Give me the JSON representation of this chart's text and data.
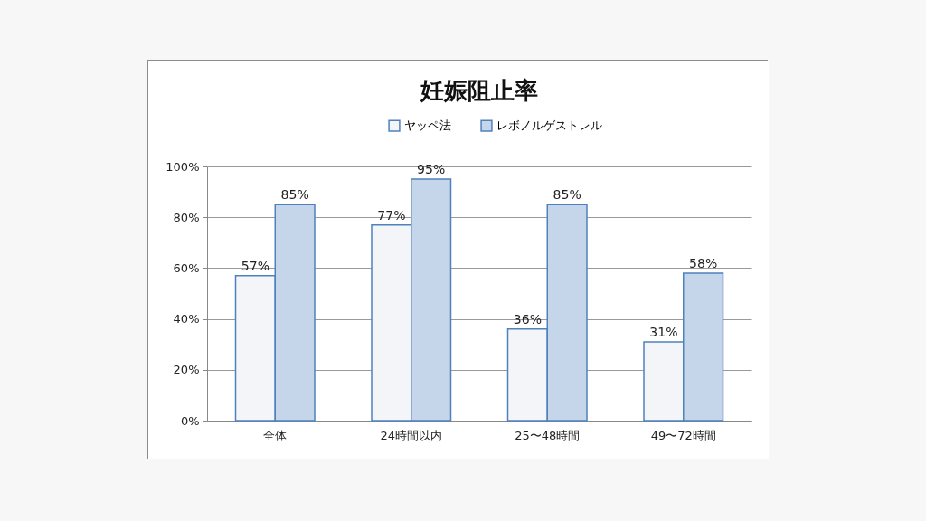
{
  "chart_data": {
    "type": "bar",
    "title": "妊娠阻止率",
    "categories": [
      "全体",
      "24時間以内",
      "25〜48時間",
      "49〜72時間"
    ],
    "series": [
      {
        "name": "ヤッペ法",
        "color": "#f3f5f9",
        "values": [
          57,
          77,
          36,
          31
        ],
        "value_labels": [
          "57%",
          "77%",
          "36%",
          "31%"
        ]
      },
      {
        "name": "レボノルゲストレル",
        "color": "#c6d6ea",
        "values": [
          85,
          95,
          85,
          58
        ],
        "value_labels": [
          "85%",
          "95%",
          "85%",
          "58%"
        ]
      }
    ],
    "ylim": [
      0,
      100
    ],
    "yticks": [
      {
        "value": 0,
        "label": "0%"
      },
      {
        "value": 20,
        "label": "20%"
      },
      {
        "value": 40,
        "label": "40%"
      },
      {
        "value": 60,
        "label": "60%"
      },
      {
        "value": 80,
        "label": "80%"
      },
      {
        "value": 100,
        "label": "100%"
      }
    ],
    "grid": "y",
    "legend": "top"
  }
}
